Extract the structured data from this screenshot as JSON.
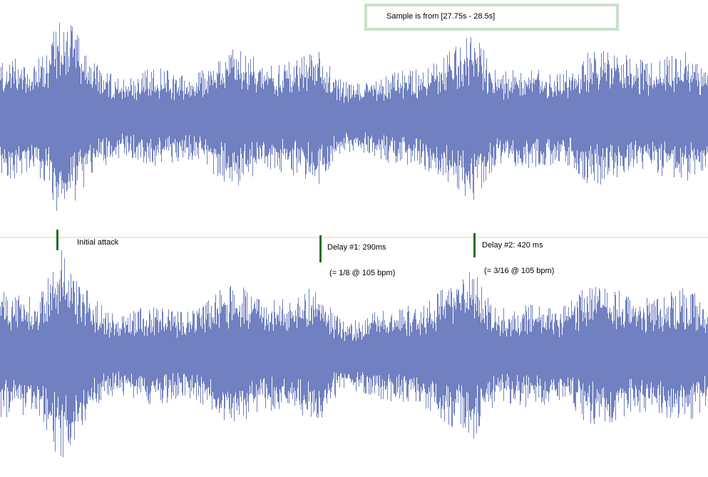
{
  "sample_range": {
    "text": "Sample is from [27.75s - 28.5s]"
  },
  "markers": [
    {
      "line1": "Initial attack",
      "line2": ""
    },
    {
      "line1": "Delay #1: 290ms",
      "line2": " (= 1/8 @ 105 bpm)"
    },
    {
      "line1": "Delay #2: 420 ms",
      "line2": " (= 3/16 @ 105 bpm)"
    }
  ],
  "colors": {
    "waveform": "#7080c0",
    "center_line": "#f0c8a0",
    "marker": "#207020",
    "sample_box_border": "#c9e0c9"
  }
}
